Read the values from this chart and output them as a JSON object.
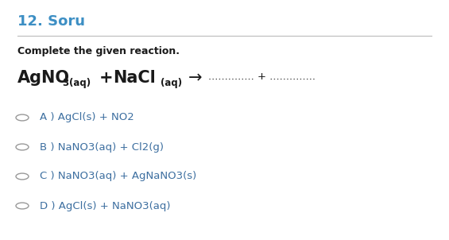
{
  "title": "12. Soru",
  "title_color": "#3d8fc4",
  "title_fontsize": 13,
  "question_text": "Complete the given reaction.",
  "bg_color": "#ffffff",
  "separator_color": "#bbbbbb",
  "options": [
    "A ) AgCl(s) + NO2",
    "B ) NaNO3(aq) + Cl2(g)",
    "C ) NaNO3(aq) + AgNaNO3(s)",
    "D ) AgCl(s) + NaNO3(aq)"
  ],
  "option_color": "#3d6fa0",
  "option_fontsize": 9.5,
  "circle_color": "#999999",
  "text_color": "#1a1a1a",
  "reaction_main_fontsize": 15,
  "reaction_sub_fontsize": 8.5,
  "dots_text": ".............. + ..............",
  "arrow": "→"
}
